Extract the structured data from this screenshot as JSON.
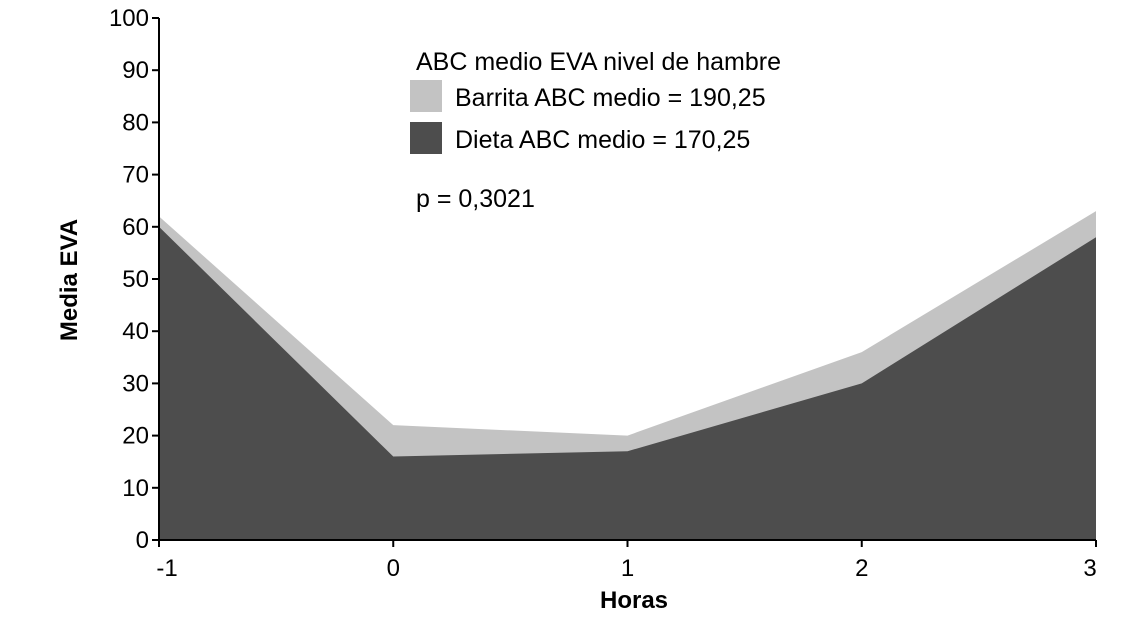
{
  "chart_data": {
    "type": "area",
    "title": "",
    "xlabel": "Horas",
    "ylabel": "Media EVA",
    "x": [
      -1,
      0,
      1,
      2,
      3
    ],
    "x_tick_labels": [
      "-1",
      "0",
      "1",
      "2",
      "3"
    ],
    "y_tick_labels": [
      "0",
      "10",
      "20",
      "30",
      "40",
      "50",
      "60",
      "70",
      "80",
      "90",
      "100"
    ],
    "ylim": [
      0,
      100
    ],
    "xlim": [
      -1,
      3
    ],
    "grid": false,
    "legend_title": "ABC medio EVA nivel de hambre",
    "legend_position": "top-center",
    "annotation": "p = 0,3021",
    "series": [
      {
        "name": "Barrita ABC medio = 190,25",
        "values": [
          62,
          22,
          20,
          36,
          63
        ],
        "color": "#c3c3c3"
      },
      {
        "name": "Dieta ABC medio = 170,25",
        "values": [
          60,
          16,
          17,
          30,
          58
        ],
        "color": "#4d4d4d"
      }
    ]
  }
}
